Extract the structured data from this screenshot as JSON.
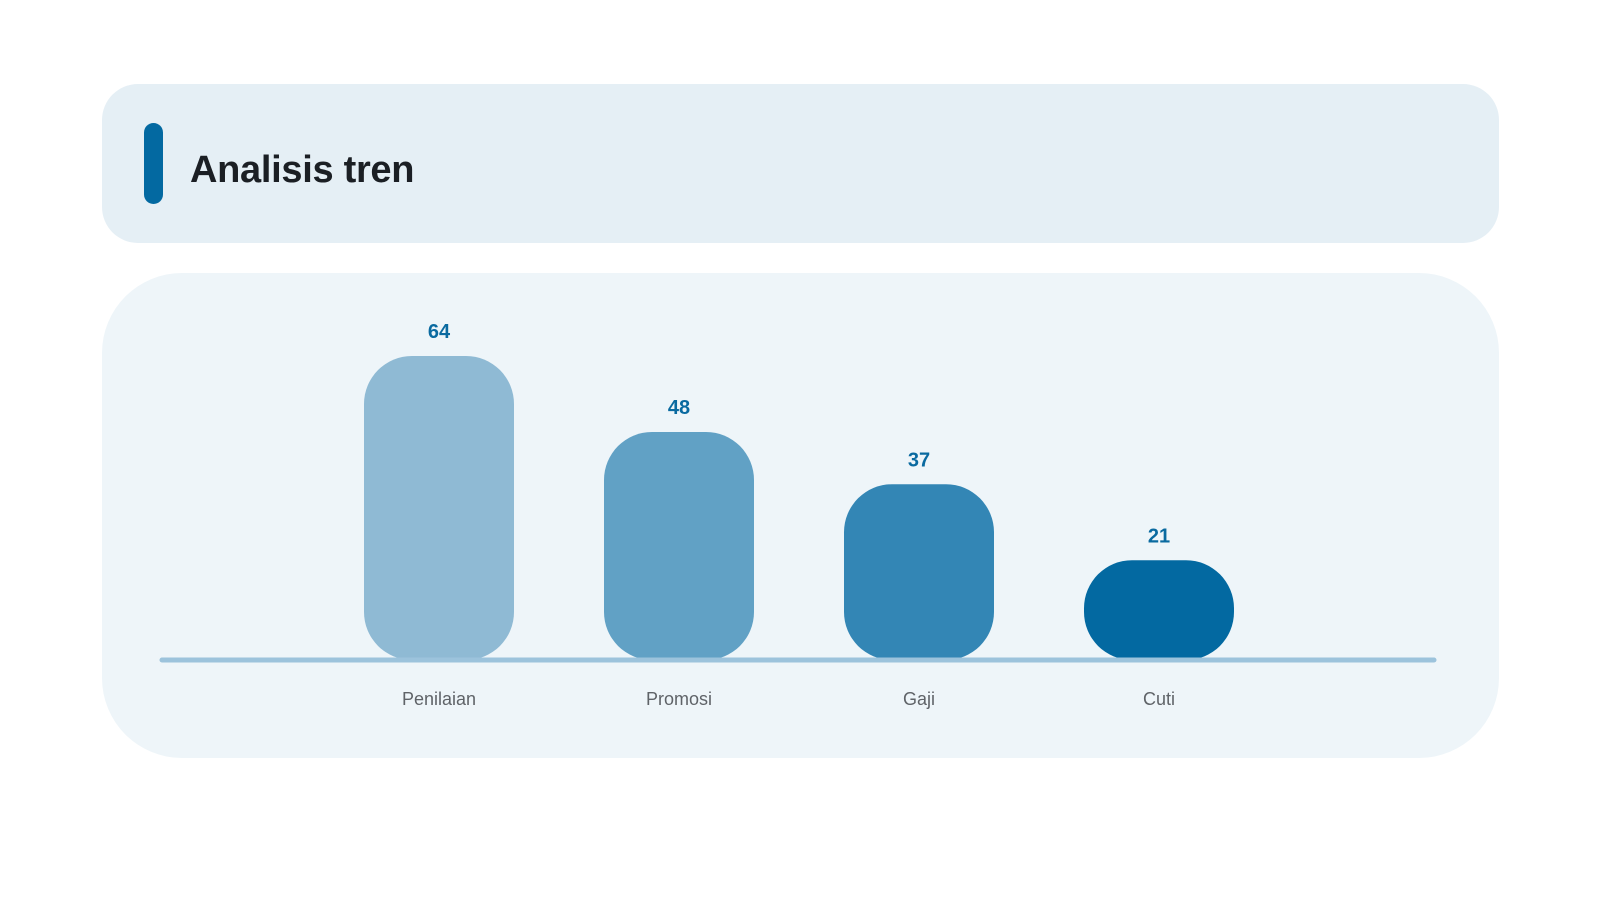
{
  "header": {
    "title": "Analisis tren"
  },
  "colors": {
    "accent": "#0369a1",
    "header_bg": "#e5eff5",
    "chart_bg": "#eef5f9",
    "baseline": "#9cc3dc",
    "value_label": "#0a6aa0",
    "category_label": "#5f6368"
  },
  "chart_data": {
    "type": "bar",
    "title": "",
    "xlabel": "",
    "ylabel": "",
    "categories": [
      "Penilaian",
      "Promosi",
      "Gaji",
      "Cuti"
    ],
    "values": [
      64,
      48,
      37,
      21
    ],
    "bar_colors": [
      "#8fbad4",
      "#61a1c5",
      "#3386b5",
      "#0369a1"
    ],
    "ylim": [
      0,
      64
    ],
    "grid": false,
    "legend": "none",
    "data_labels": true
  }
}
